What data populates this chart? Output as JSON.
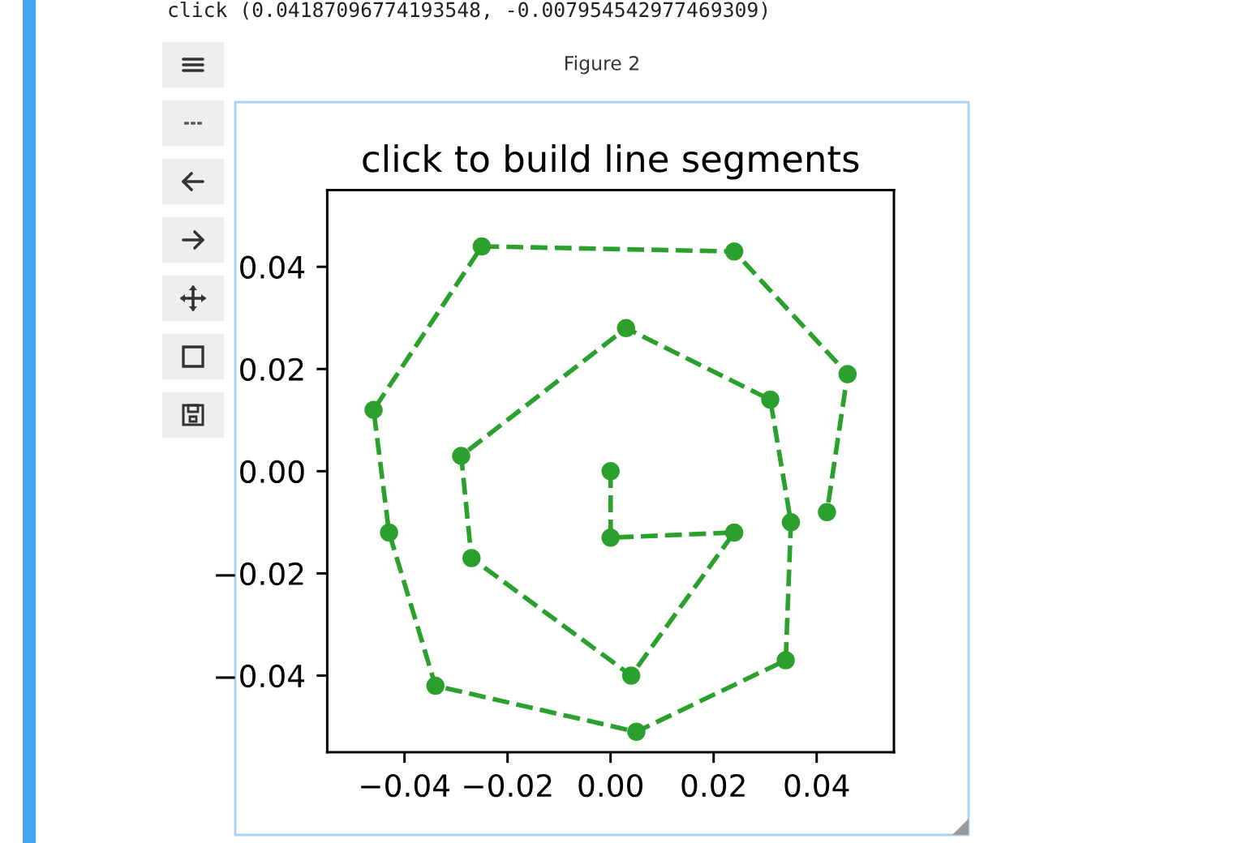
{
  "chart_data": {
    "type": "line",
    "title": "click to build line segments",
    "annotations": [
      "click (0.04187096774193548, -0.007954542977469309)",
      "Figure 2"
    ],
    "series": [
      {
        "color": "#2ca02c",
        "x": [
          0.0,
          0.0,
          0.024,
          0.004,
          -0.027,
          -0.029,
          0.003,
          0.031,
          0.035,
          0.034,
          0.005,
          -0.034,
          -0.043,
          -0.046,
          -0.025,
          0.024,
          0.046,
          0.042
        ],
        "values": [
          0.0,
          -0.013,
          -0.012,
          -0.04,
          -0.017,
          0.003,
          0.028,
          0.014,
          -0.01,
          -0.037,
          -0.051,
          -0.042,
          -0.012,
          0.012,
          0.044,
          0.043,
          0.019,
          -0.008
        ]
      }
    ],
    "xlim": [
      -0.055,
      0.055
    ],
    "ylim": [
      -0.055,
      0.055
    ],
    "xticks": [
      {
        "value": -0.04,
        "label": "−0.04"
      },
      {
        "value": -0.02,
        "label": "−0.02"
      },
      {
        "value": 0,
        "label": "0.00"
      },
      {
        "value": 0.02,
        "label": "0.02"
      },
      {
        "value": 0.04,
        "label": "0.04"
      }
    ],
    "yticks": [
      {
        "value": -0.04,
        "label": "−0.04"
      },
      {
        "value": -0.02,
        "label": "−0.02"
      },
      {
        "value": 0,
        "label": "0.00"
      },
      {
        "value": 0.02,
        "label": "0.02"
      },
      {
        "value": 0.04,
        "label": "0.04"
      }
    ],
    "marker": "circle",
    "line_style": "dashed",
    "grid": false
  }
}
